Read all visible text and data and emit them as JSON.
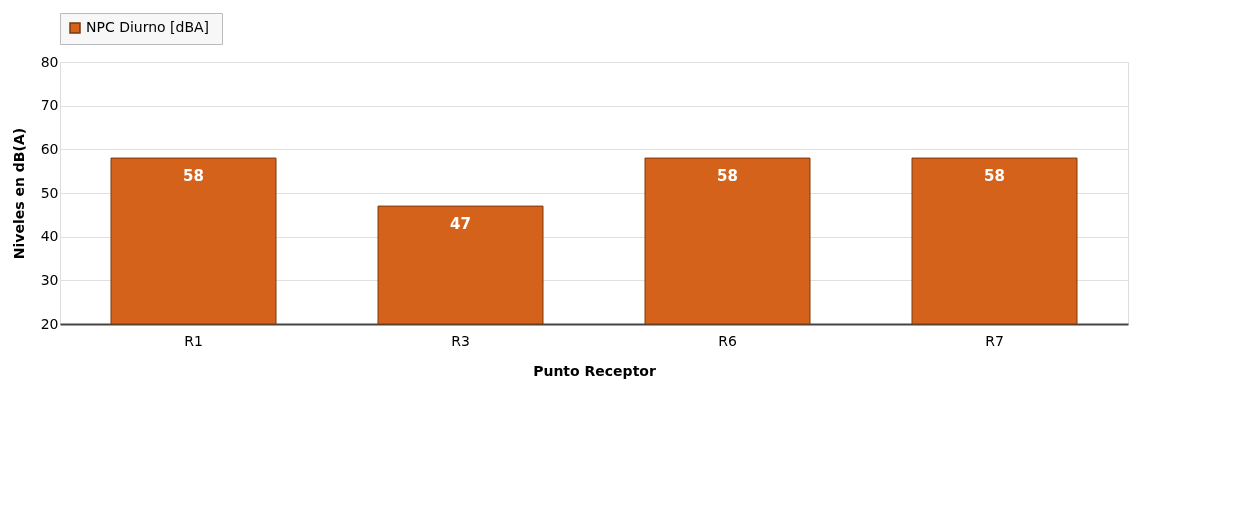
{
  "chart_data": {
    "type": "bar",
    "xlabel": "Punto Receptor",
    "ylabel": "Niveles en dB(A)",
    "categories": [
      "R1",
      "R3",
      "R6",
      "R7"
    ],
    "series": [
      {
        "name": "NPC Diurno  [dBA]",
        "color": "#d4621a",
        "values": [
          58,
          47,
          58,
          58
        ]
      }
    ],
    "ylim": [
      20,
      80
    ],
    "yticks": [
      20,
      30,
      40,
      50,
      60,
      70,
      80
    ],
    "grid": "y",
    "legend": "top",
    "data_labels": true
  }
}
